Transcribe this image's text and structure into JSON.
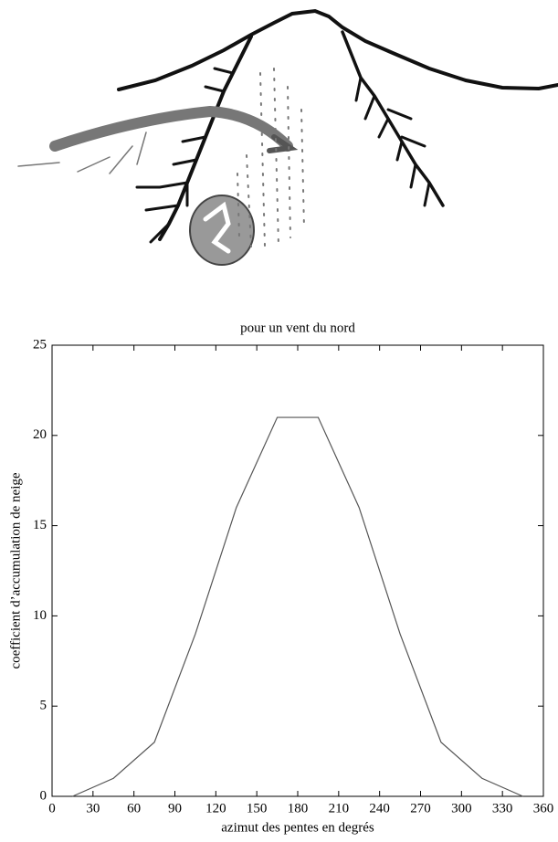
{
  "chart_data": {
    "type": "line",
    "title": "pour un vent du nord",
    "xlabel": "azimut des pentes en degrés",
    "ylabel": "coefficient d’accumulation de neige",
    "x": [
      15,
      45,
      75,
      105,
      135,
      165,
      195,
      225,
      255,
      285,
      315,
      345
    ],
    "values": [
      0,
      1,
      3,
      9,
      16,
      21,
      21,
      16,
      9,
      3,
      1,
      0
    ],
    "color": "#555555",
    "xlim": [
      0,
      360
    ],
    "xticks": [
      0,
      30,
      60,
      90,
      120,
      150,
      180,
      210,
      240,
      270,
      300,
      330,
      360
    ],
    "ylim": [
      0,
      25
    ],
    "yticks": [
      0,
      5,
      10,
      15,
      20,
      25
    ]
  }
}
